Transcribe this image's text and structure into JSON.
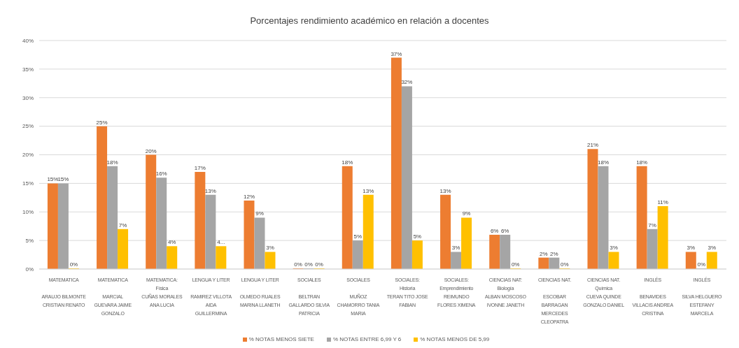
{
  "chart_data": {
    "type": "bar",
    "title": "Porcentajes rendimiento académico en relación a docentes",
    "categories": [
      "MATEMATICA\n\nARAUJO BILMONTE\nCRISTIAN RENATO",
      "MATEMATICA\n\nMARCIAL\nGUEVARA JAIME\nGONZALO",
      "MATEMATICA:\nFísica\nCUÑAS MORALES\nANA LUCIA",
      "LENGUA Y LITER\n\nRAMIREZ VILLOTA\nAIDA\nGUILLERMINA",
      "LENGUA Y LITER\n\nOLMEDO RUALES\nMARINA LLANETH",
      "SOCIALES\n\nBELTRAN\nGALLARDO SILVIA\nPATRICIA",
      "SOCIALES\n\nMUÑOZ\nCHAMORRO TANIA\nMARIA",
      "SOCIALES:\nHistoria\nTERAN TITO JOSE\nFABIAN",
      "SOCIALES:\nEmprendimiento\nREIMUNDO\nFLORES XIMENA",
      "CIENCIAS NAT:\nBiología\nALBAN MOSCOSO\nIVONNE JANETH",
      "CIENCIAS NAT.\n\nESCOBAR\nBARRAGAN\nMERCEDES\nCLEOPATRA",
      "CIENCIAS NAT.\nQuímica\nCUEVA QUINDE\nGONZALO DANIEL",
      "INGLÉS\n\nBENAVIDES\nVILLACIS ANDREA\nCRISTINA",
      "INGLÉS\n\nSILVA HELGUERO\nESTEFANY\nMARCELA"
    ],
    "series": [
      {
        "name": "% NOTAS MENOS SIETE",
        "color": "#ed7d31",
        "values": [
          15,
          25,
          20,
          17,
          12,
          0,
          18,
          37,
          13,
          6,
          2,
          21,
          18,
          3
        ],
        "value_labels": [
          "15%",
          "25%",
          "20%",
          "17%",
          "12%",
          "0%",
          "18%",
          "37%",
          "13%",
          "6%",
          "2%",
          "21%",
          "18%",
          "3%"
        ]
      },
      {
        "name": "% NOTAS ENTRE 6,99 Y 6",
        "color": "#a5a5a5",
        "values": [
          15,
          18,
          16,
          13,
          9,
          0,
          5,
          32,
          3,
          6,
          2,
          18,
          7,
          0
        ],
        "value_labels": [
          "15%",
          "18%",
          "16%",
          "13%",
          "9%",
          "0%",
          "5%",
          "32%",
          "3%",
          "6%",
          "2%",
          "18%",
          "7%",
          "0%"
        ]
      },
      {
        "name": "% NOTAS MENOS DE 5,99",
        "color": "#ffc000",
        "values": [
          0,
          7,
          4,
          4,
          3,
          0,
          13,
          5,
          9,
          0,
          0,
          3,
          11,
          3
        ],
        "value_labels": [
          "0%",
          "7%",
          "4%",
          "4...",
          "3%",
          "0%",
          "13%",
          "5%",
          "9%",
          "0%",
          "0%",
          "3%",
          "11%",
          "3%"
        ]
      }
    ],
    "ylim": [
      0,
      40
    ],
    "yticks": [
      {
        "value": 0,
        "label": "0%"
      },
      {
        "value": 5,
        "label": "5%"
      },
      {
        "value": 10,
        "label": "10%"
      },
      {
        "value": 15,
        "label": "15%"
      },
      {
        "value": 20,
        "label": "20%"
      },
      {
        "value": 25,
        "label": "25%"
      },
      {
        "value": 30,
        "label": "30%"
      },
      {
        "value": 35,
        "label": "35%"
      },
      {
        "value": 40,
        "label": "40%"
      }
    ],
    "grid": "y",
    "legend": "bottom"
  }
}
